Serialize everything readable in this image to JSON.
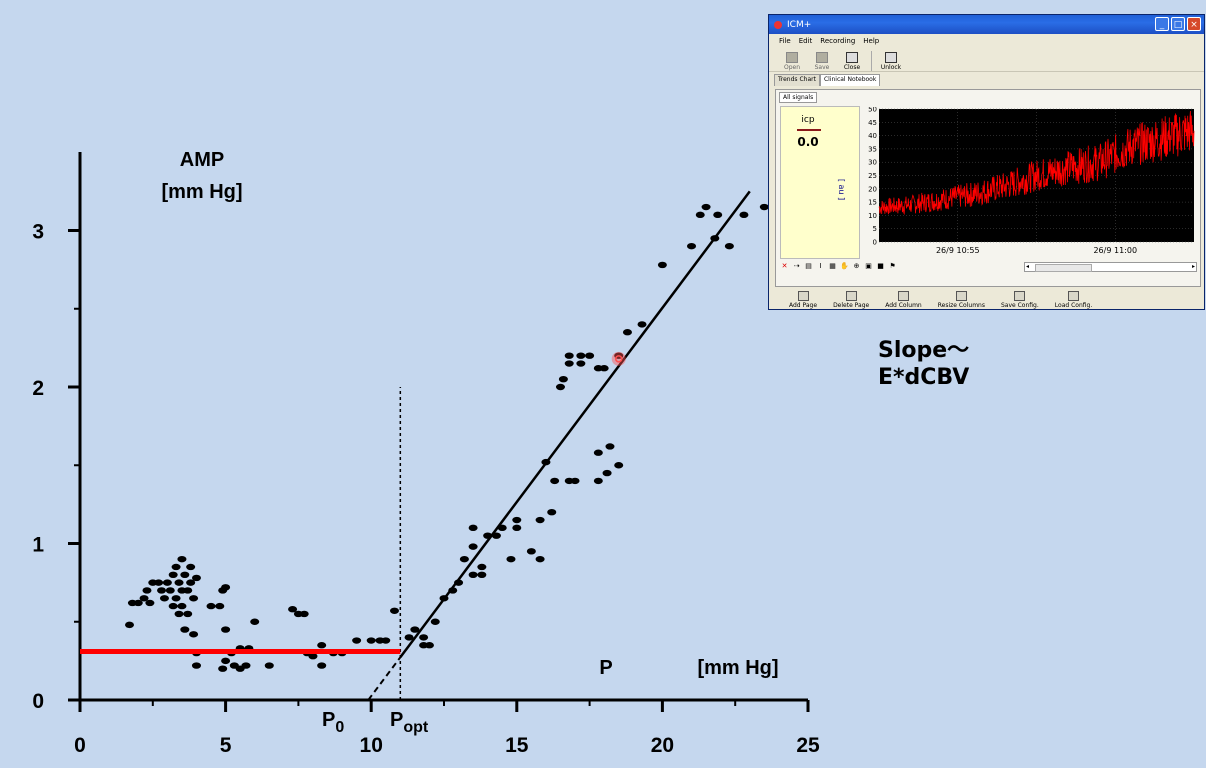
{
  "chart_data": [
    {
      "type": "scatter",
      "title": "AMP",
      "ylabel_unit": "[mm Hg]",
      "xlabel": "P",
      "xlabel_unit": "[mm Hg]",
      "xlim": [
        0,
        25
      ],
      "ylim": [
        0,
        3.5
      ],
      "xticks": [
        "0",
        "5",
        "10",
        "15",
        "20",
        "25"
      ],
      "yticks": [
        "0",
        "1",
        "2",
        "3"
      ],
      "markers": {
        "p0": "P",
        "p0_sub": "0",
        "popt": "P",
        "popt_sub": "opt"
      },
      "points": [
        {
          "x": 1.7,
          "y": 0.48
        },
        {
          "x": 1.8,
          "y": 0.62
        },
        {
          "x": 2.0,
          "y": 0.62
        },
        {
          "x": 2.2,
          "y": 0.65
        },
        {
          "x": 2.3,
          "y": 0.7
        },
        {
          "x": 2.4,
          "y": 0.62
        },
        {
          "x": 2.5,
          "y": 0.75
        },
        {
          "x": 2.7,
          "y": 0.75
        },
        {
          "x": 2.8,
          "y": 0.7
        },
        {
          "x": 2.9,
          "y": 0.65
        },
        {
          "x": 3.0,
          "y": 0.75
        },
        {
          "x": 3.1,
          "y": 0.7
        },
        {
          "x": 3.2,
          "y": 0.6
        },
        {
          "x": 3.2,
          "y": 0.8
        },
        {
          "x": 3.3,
          "y": 0.85
        },
        {
          "x": 3.3,
          "y": 0.65
        },
        {
          "x": 3.4,
          "y": 0.75
        },
        {
          "x": 3.4,
          "y": 0.55
        },
        {
          "x": 3.5,
          "y": 0.9
        },
        {
          "x": 3.5,
          "y": 0.7
        },
        {
          "x": 3.5,
          "y": 0.6
        },
        {
          "x": 3.6,
          "y": 0.8
        },
        {
          "x": 3.6,
          "y": 0.45
        },
        {
          "x": 3.7,
          "y": 0.7
        },
        {
          "x": 3.7,
          "y": 0.55
        },
        {
          "x": 3.8,
          "y": 0.85
        },
        {
          "x": 3.8,
          "y": 0.75
        },
        {
          "x": 3.9,
          "y": 0.65
        },
        {
          "x": 3.9,
          "y": 0.42
        },
        {
          "x": 4.0,
          "y": 0.78
        },
        {
          "x": 4.0,
          "y": 0.22
        },
        {
          "x": 4.0,
          "y": 0.3
        },
        {
          "x": 4.5,
          "y": 0.6
        },
        {
          "x": 4.8,
          "y": 0.6
        },
        {
          "x": 4.9,
          "y": 0.7
        },
        {
          "x": 5.0,
          "y": 0.72
        },
        {
          "x": 5.0,
          "y": 0.45
        },
        {
          "x": 5.0,
          "y": 0.25
        },
        {
          "x": 4.9,
          "y": 0.2
        },
        {
          "x": 5.2,
          "y": 0.3
        },
        {
          "x": 5.3,
          "y": 0.22
        },
        {
          "x": 5.5,
          "y": 0.33
        },
        {
          "x": 5.5,
          "y": 0.2
        },
        {
          "x": 5.7,
          "y": 0.22
        },
        {
          "x": 5.8,
          "y": 0.33
        },
        {
          "x": 6.0,
          "y": 0.5
        },
        {
          "x": 6.5,
          "y": 0.22
        },
        {
          "x": 7.3,
          "y": 0.58
        },
        {
          "x": 7.5,
          "y": 0.55
        },
        {
          "x": 7.7,
          "y": 0.55
        },
        {
          "x": 7.8,
          "y": 0.3
        },
        {
          "x": 8.0,
          "y": 0.28
        },
        {
          "x": 8.3,
          "y": 0.35
        },
        {
          "x": 8.3,
          "y": 0.22
        },
        {
          "x": 8.7,
          "y": 0.3
        },
        {
          "x": 9.0,
          "y": 0.3
        },
        {
          "x": 9.5,
          "y": 0.38
        },
        {
          "x": 10.0,
          "y": 0.38
        },
        {
          "x": 10.3,
          "y": 0.38
        },
        {
          "x": 10.5,
          "y": 0.38
        },
        {
          "x": 10.8,
          "y": 0.57
        },
        {
          "x": 11.3,
          "y": 0.4
        },
        {
          "x": 11.5,
          "y": 0.45
        },
        {
          "x": 11.8,
          "y": 0.4
        },
        {
          "x": 11.8,
          "y": 0.35
        },
        {
          "x": 12.0,
          "y": 0.35
        },
        {
          "x": 12.2,
          "y": 0.5
        },
        {
          "x": 12.5,
          "y": 0.65
        },
        {
          "x": 12.8,
          "y": 0.7
        },
        {
          "x": 13.0,
          "y": 0.75
        },
        {
          "x": 13.2,
          "y": 0.9
        },
        {
          "x": 13.5,
          "y": 0.8
        },
        {
          "x": 13.5,
          "y": 0.98
        },
        {
          "x": 13.5,
          "y": 1.1
        },
        {
          "x": 13.8,
          "y": 0.85
        },
        {
          "x": 13.8,
          "y": 0.8
        },
        {
          "x": 14.0,
          "y": 1.05
        },
        {
          "x": 14.3,
          "y": 1.05
        },
        {
          "x": 14.5,
          "y": 1.1
        },
        {
          "x": 14.8,
          "y": 0.9
        },
        {
          "x": 15.0,
          "y": 1.1
        },
        {
          "x": 15.0,
          "y": 1.15
        },
        {
          "x": 15.5,
          "y": 0.95
        },
        {
          "x": 15.8,
          "y": 1.15
        },
        {
          "x": 15.8,
          "y": 0.9
        },
        {
          "x": 16.0,
          "y": 1.52
        },
        {
          "x": 16.2,
          "y": 1.2
        },
        {
          "x": 16.3,
          "y": 1.4
        },
        {
          "x": 16.5,
          "y": 2.0
        },
        {
          "x": 16.6,
          "y": 2.05
        },
        {
          "x": 16.8,
          "y": 2.15
        },
        {
          "x": 16.8,
          "y": 2.2
        },
        {
          "x": 16.8,
          "y": 1.4
        },
        {
          "x": 17.0,
          "y": 1.4
        },
        {
          "x": 17.2,
          "y": 2.2
        },
        {
          "x": 17.2,
          "y": 2.15
        },
        {
          "x": 17.5,
          "y": 2.2
        },
        {
          "x": 17.8,
          "y": 2.12
        },
        {
          "x": 17.8,
          "y": 1.4
        },
        {
          "x": 17.8,
          "y": 1.58
        },
        {
          "x": 18.0,
          "y": 2.12
        },
        {
          "x": 18.1,
          "y": 1.45
        },
        {
          "x": 18.2,
          "y": 1.62
        },
        {
          "x": 18.5,
          "y": 1.5
        },
        {
          "x": 18.5,
          "y": 2.2
        },
        {
          "x": 18.8,
          "y": 2.35
        },
        {
          "x": 19.3,
          "y": 2.4
        },
        {
          "x": 20.0,
          "y": 2.78
        },
        {
          "x": 21.0,
          "y": 2.9
        },
        {
          "x": 21.3,
          "y": 3.1
        },
        {
          "x": 21.5,
          "y": 3.15
        },
        {
          "x": 21.8,
          "y": 2.95
        },
        {
          "x": 21.9,
          "y": 3.1
        },
        {
          "x": 22.3,
          "y": 2.9
        },
        {
          "x": 22.8,
          "y": 3.1
        },
        {
          "x": 23.5,
          "y": 3.15
        }
      ],
      "lines": {
        "flat": {
          "x": [
            0,
            11
          ],
          "y": [
            0.31,
            0.31
          ],
          "color": "#ff0000"
        },
        "fit": {
          "x": [
            9.9,
            23.0
          ],
          "y": [
            0.0,
            3.25
          ],
          "color": "#000000"
        },
        "vline_x": 11.0,
        "vline_top": 2.0
      },
      "highlight": {
        "x": 18.5,
        "y": 2.18,
        "color": "#ff5050"
      }
    },
    {
      "type": "line",
      "title": "icp",
      "value_text": "0.0",
      "ylabel": "[ au ]",
      "ylim": [
        0,
        50
      ],
      "yticks": [
        "0",
        "5",
        "10",
        "15",
        "20",
        "25",
        "30",
        "35",
        "40",
        "45",
        "50"
      ],
      "xtick_labels": [
        "26/9 10:55",
        "26/9 11:00"
      ],
      "trend": [
        {
          "t": 0,
          "y": 13
        },
        {
          "t": 0.1,
          "y": 14
        },
        {
          "t": 0.2,
          "y": 16
        },
        {
          "t": 0.3,
          "y": 18
        },
        {
          "t": 0.4,
          "y": 21
        },
        {
          "t": 0.5,
          "y": 25
        },
        {
          "t": 0.6,
          "y": 28
        },
        {
          "t": 0.7,
          "y": 30
        },
        {
          "t": 0.8,
          "y": 36
        },
        {
          "t": 0.9,
          "y": 39
        },
        {
          "t": 1.0,
          "y": 42
        }
      ],
      "color": "#ff0000",
      "background": "#000000"
    }
  ],
  "annotation": {
    "line1": "Slope〜",
    "line2": "E*dCBV"
  },
  "window": {
    "title": "ICM+",
    "menu": [
      "File",
      "Edit",
      "Recording",
      "Help"
    ],
    "toolbar": [
      "Open",
      "Save",
      "Close",
      "Unlock"
    ],
    "tabs": [
      "Trends Chart",
      "Clinical Notebook"
    ],
    "subtab": "All signals",
    "bottom_buttons": [
      "Add Page",
      "Delete Page",
      "Add Column",
      "Resize Columns",
      "Save Config.",
      "Load Config."
    ]
  }
}
